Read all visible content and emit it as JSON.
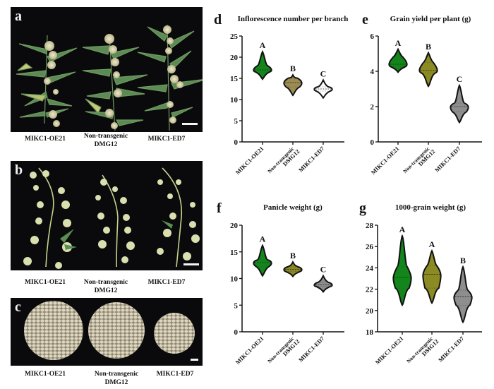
{
  "photos": {
    "a": {
      "letter": "a",
      "captions": [
        "MIKC1-OE21",
        "Non-transgenic\nDMG12",
        "MIKC1-ED7"
      ]
    },
    "b": {
      "letter": "b",
      "captions": [
        "MIKC1-OE21",
        "Non-transgenic\nDMG12",
        "MIKC1-ED7"
      ]
    },
    "c": {
      "letter": "c",
      "captions": [
        "MIKC1-OE21",
        "Non-transgenic\nDMG12",
        "MIKC1-ED7"
      ]
    }
  },
  "captions": {
    "oe21": "MIKC1-OE21",
    "nt_line1": "Non-transgenic",
    "nt_line2": "DMG12",
    "ed7": "MIKC1-ED7"
  },
  "colors": {
    "green": "#12861a",
    "olive": "#8c8a22",
    "olive_light": "#9c8c52",
    "grey": "#8e8e8e",
    "white": "#ffffff"
  },
  "chart_data": [
    {
      "panel": "d",
      "type": "violin",
      "title": "Inflorescence number per branch",
      "xlabel": "",
      "ylabel": "",
      "categories": [
        "MIKC1-OE21",
        "Non-transgenic DMG12",
        "MIKC1-ED7"
      ],
      "yticks": [
        0,
        5,
        10,
        15,
        20,
        25
      ],
      "ylim": [
        0,
        25
      ],
      "series": [
        {
          "name": "MIKC1-OE21",
          "min": 14.8,
          "max": 21.3,
          "median": 17,
          "q1": 16.5,
          "q3": 18,
          "letter": "A",
          "color": "#12861a"
        },
        {
          "name": "Non-transgenic DMG12",
          "min": 11.0,
          "max": 15.8,
          "median": 14,
          "q1": 13,
          "q3": 15,
          "letter": "B",
          "color": "#9c8c52"
        },
        {
          "name": "MIKC1-ED7",
          "min": 10.4,
          "max": 14.6,
          "median": 12.5,
          "q1": 12,
          "q3": 13,
          "letter": "C",
          "color": "#ffffff"
        }
      ]
    },
    {
      "panel": "e",
      "type": "violin",
      "title": "Grain yield per plant (g)",
      "xlabel": "",
      "ylabel": "",
      "categories": [
        "MIKC1-OE21",
        "Non-transgenic DMG12",
        "MIKC1-ED7"
      ],
      "yticks": [
        0,
        2,
        4,
        6
      ],
      "ylim": [
        0,
        6
      ],
      "series": [
        {
          "name": "MIKC1-OE21",
          "min": 3.95,
          "max": 5.25,
          "median": 4.4,
          "q1": 4.25,
          "q3": 4.8,
          "letter": "A",
          "color": "#12861a"
        },
        {
          "name": "Non-transgenic DMG12",
          "min": 3.15,
          "max": 5.05,
          "median": 4.05,
          "q1": 3.9,
          "q3": 4.5,
          "letter": "B",
          "color": "#8c8a22"
        },
        {
          "name": "MIKC1-ED7",
          "min": 1.1,
          "max": 3.2,
          "median": 2.0,
          "q1": 1.7,
          "q3": 2.2,
          "letter": "C",
          "color": "#8e8e8e"
        }
      ]
    },
    {
      "panel": "f",
      "type": "violin",
      "title": "Panicle weight (g)",
      "xlabel": "",
      "ylabel": "",
      "categories": [
        "MIKC1-OE21",
        "Non-transgenic DMG12",
        "MIKC1-ED7"
      ],
      "yticks": [
        0,
        5,
        10,
        15,
        20
      ],
      "ylim": [
        0,
        20
      ],
      "series": [
        {
          "name": "MIKC1-OE21",
          "min": 10.5,
          "max": 16.2,
          "median": 13,
          "q1": 12.3,
          "q3": 13.5,
          "letter": "A",
          "color": "#12861a"
        },
        {
          "name": "Non-transgenic DMG12",
          "min": 10.4,
          "max": 13.1,
          "median": 11.7,
          "q1": 11.3,
          "q3": 12.2,
          "letter": "B",
          "color": "#8c8a22"
        },
        {
          "name": "MIKC1-ED7",
          "min": 7.5,
          "max": 10.5,
          "median": 8.8,
          "q1": 8.5,
          "q3": 9.3,
          "letter": "C",
          "color": "#8e8e8e"
        }
      ]
    },
    {
      "panel": "g",
      "type": "violin",
      "title": "1000-grain weight (g)",
      "xlabel": "",
      "ylabel": "",
      "categories": [
        "MIKC1-OE21",
        "Non-transgenic DMG12",
        "MIKC1-ED7"
      ],
      "yticks": [
        18,
        20,
        22,
        24,
        26,
        28
      ],
      "ylim": [
        18,
        28
      ],
      "series": [
        {
          "name": "MIKC1-OE21",
          "min": 20.5,
          "max": 27.0,
          "median": 23.1,
          "q1": 22.1,
          "q3": 24.1,
          "letter": "A",
          "color": "#12861a"
        },
        {
          "name": "Non-transgenic DMG12",
          "min": 20.7,
          "max": 25.6,
          "median": 23.4,
          "q1": 22.1,
          "q3": 24.2,
          "letter": "A",
          "color": "#8c8a22"
        },
        {
          "name": "MIKC1-ED7",
          "min": 18.9,
          "max": 24.1,
          "median": 21.3,
          "q1": 20.5,
          "q3": 21.9,
          "letter": "B",
          "color": "#8e8e8e"
        }
      ]
    }
  ]
}
